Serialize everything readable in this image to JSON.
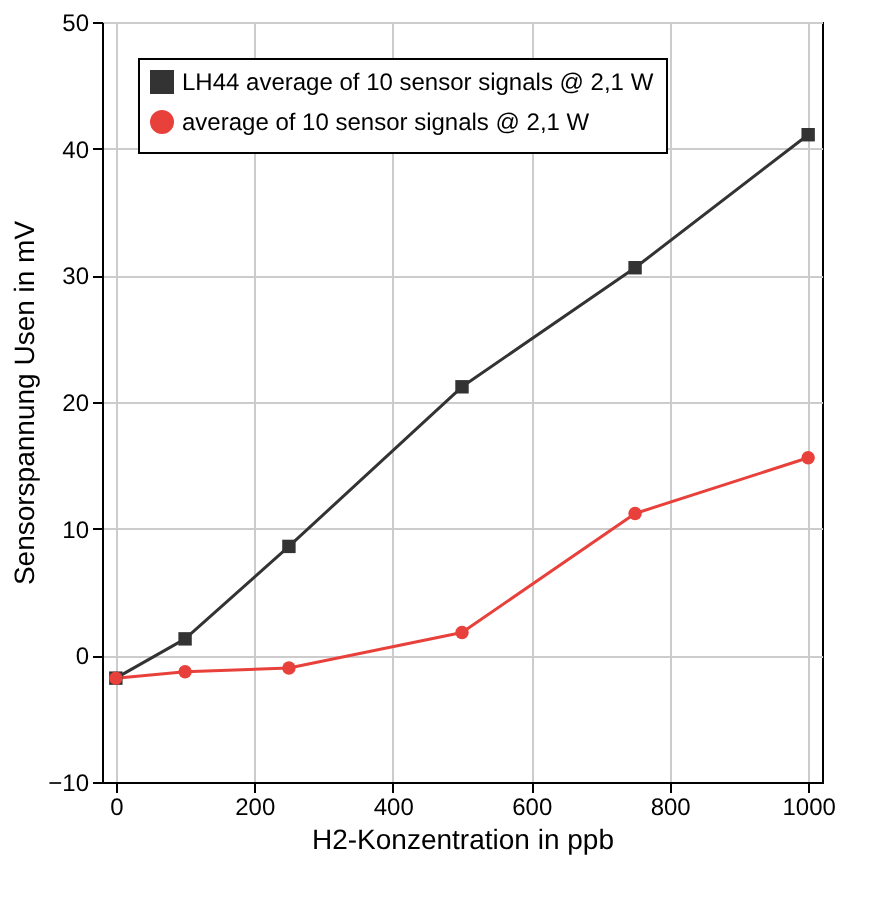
{
  "chart_data": {
    "type": "line",
    "xlabel": "H2-Konzentration in ppb",
    "ylabel": "Sensorspannung Usen in mV",
    "x": [
      0,
      100,
      250,
      500,
      750,
      1000
    ],
    "series": [
      {
        "name": "LH44 average of 10 sensor signals @ 2,1 W",
        "color": "#333333",
        "marker": "square",
        "values": [
          -1.8,
          1.3,
          8.6,
          21.2,
          30.6,
          41.1
        ]
      },
      {
        "name": "average of 10 sensor signals @ 2,1 W",
        "color": "#e8403a",
        "marker": "circle",
        "values": [
          -1.8,
          -1.3,
          -1.0,
          1.8,
          11.2,
          15.6
        ]
      }
    ],
    "xlim": [
      -20,
      1020
    ],
    "ylim": [
      -10,
      50
    ],
    "xticks": [
      0,
      200,
      400,
      600,
      800,
      1000
    ],
    "yticks": [
      -10,
      0,
      10,
      20,
      30,
      40,
      50
    ],
    "grid": true,
    "legend": "top left",
    "line_style": "solid"
  }
}
